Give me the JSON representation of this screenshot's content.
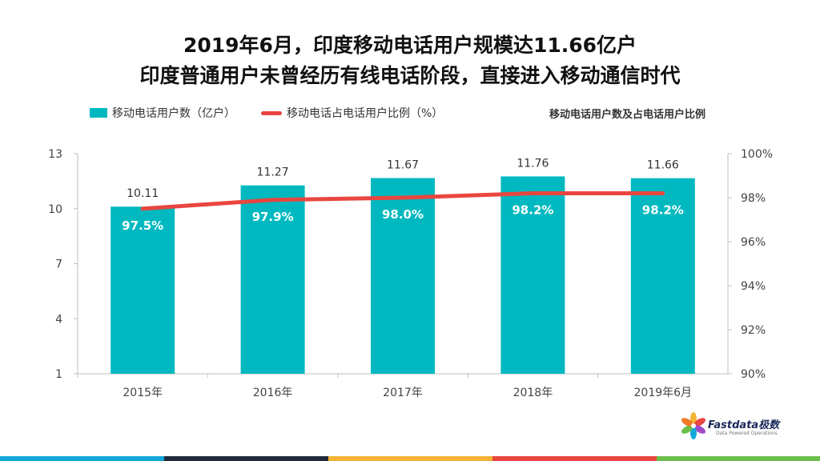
{
  "title_line1": "2019年6月，印度移动电话用户规模达11.66亿户",
  "title_line2": "印度普通用户未曾经历有线电话阶段，直接进入移动通信时代",
  "chart_data": {
    "type": "bar",
    "title": "移动电话用户数及占电话用户比例",
    "categories": [
      "2015年",
      "2016年",
      "2017年",
      "2018年",
      "2019年6月"
    ],
    "series": [
      {
        "name": "移动电话用户数（亿户）",
        "type": "bar",
        "axis": "left",
        "values": [
          10.11,
          11.27,
          11.67,
          11.76,
          11.66
        ],
        "labels": [
          "10.11",
          "11.27",
          "11.67",
          "11.76",
          "11.66"
        ],
        "color": "#00b9c0"
      },
      {
        "name": "移动电话占电话用户比例（%）",
        "type": "line",
        "axis": "right",
        "values": [
          97.5,
          97.9,
          98.0,
          98.2,
          98.2
        ],
        "labels": [
          "97.5%",
          "97.9%",
          "98.0%",
          "98.2%",
          "98.2%"
        ],
        "color": "#e8463f"
      }
    ],
    "ylim_left": [
      1,
      13
    ],
    "yticks_left": [
      "1",
      "4",
      "7",
      "10",
      "13"
    ],
    "ylim_right": [
      90,
      100
    ],
    "yticks_right": [
      "90%",
      "92%",
      "94%",
      "96%",
      "98%",
      "100%"
    ],
    "grid": false,
    "legend_position": "top-left"
  },
  "logo": {
    "name": "Fastdata极数",
    "tagline": "Data Powered Operations"
  },
  "colors": {
    "bar": "#00b9c0",
    "line": "#e8463f",
    "footer": [
      "#14a8d8",
      "#1f2b3c",
      "#f2b434",
      "#e8463f",
      "#6cbf4a"
    ]
  }
}
